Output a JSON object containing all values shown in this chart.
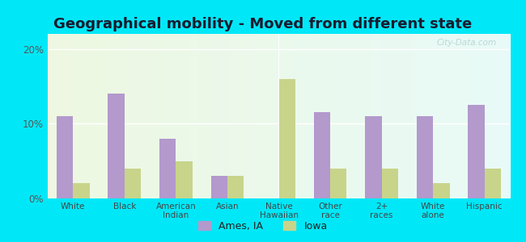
{
  "title": "Geographical mobility - Moved from different state",
  "categories": [
    "White",
    "Black",
    "American\nIndian",
    "Asian",
    "Native\nHawaiian",
    "Other\nrace",
    "2+\nraces",
    "White\nalone",
    "Hispanic"
  ],
  "ames_values": [
    11.0,
    14.0,
    8.0,
    3.0,
    0.0,
    11.5,
    11.0,
    11.0,
    12.5
  ],
  "iowa_values": [
    2.0,
    4.0,
    5.0,
    3.0,
    16.0,
    4.0,
    4.0,
    2.0,
    4.0
  ],
  "ames_color": "#b399cc",
  "iowa_color": "#c8d48a",
  "bg_outer": "#00e8f8",
  "ylim": [
    0,
    22
  ],
  "yticks": [
    0,
    10,
    20
  ],
  "ytick_labels": [
    "0%",
    "10%",
    "20%"
  ],
  "legend_ames": "Ames, IA",
  "legend_iowa": "Iowa",
  "title_fontsize": 13,
  "bar_width": 0.32,
  "watermark": "City-Data.com"
}
